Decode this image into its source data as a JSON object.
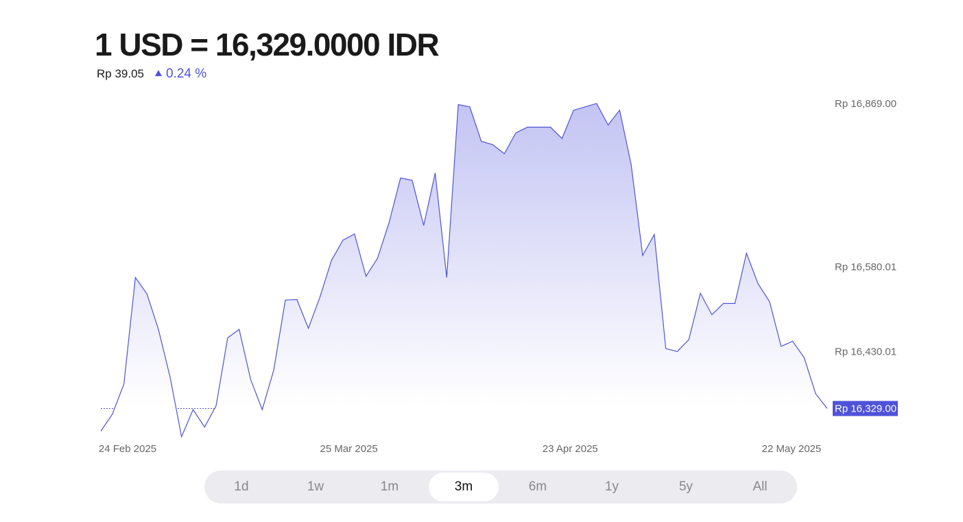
{
  "chart_data": {
    "type": "area",
    "title": "1 USD = 16,329.0000 IDR",
    "change": "Rp 39.05",
    "change_percent": "0.24 %",
    "x_labels": [
      "24 Feb 2025",
      "25 Mar 2025",
      "23 Apr 2025",
      "22 May 2025"
    ],
    "values": [
      16289,
      16319,
      16372,
      16561,
      16532,
      16469,
      16385,
      16279,
      16327,
      16296,
      16334,
      16454,
      16469,
      16380,
      16327,
      16397,
      16521,
      16522,
      16471,
      16526,
      16591,
      16627,
      16638,
      16563,
      16595,
      16658,
      16737,
      16733,
      16653,
      16746,
      16561,
      16867,
      16863,
      16802,
      16796,
      16780,
      16817,
      16827,
      16827,
      16827,
      16807,
      16857,
      16863,
      16869,
      16831,
      16857,
      16761,
      16600,
      16637,
      16435,
      16430,
      16451,
      16533,
      16495,
      16515,
      16515,
      16604,
      16550,
      16518,
      16439,
      16448,
      16419,
      16355,
      16329
    ],
    "color": "#4f52d8",
    "ylim": [
      16275,
      16870
    ],
    "yticks": [
      {
        "value": 16869,
        "label": "Rp 16,869.00"
      },
      {
        "value": 16580.01,
        "label": "Rp 16,580.01"
      },
      {
        "value": 16430.01,
        "label": "Rp 16,430.01"
      },
      {
        "value": 16329,
        "label": "Rp 16,329.00"
      }
    ],
    "ranges": [
      "1d",
      "1w",
      "1m",
      "3m",
      "6m",
      "1y",
      "5y",
      "All"
    ],
    "selected_range": 3
  }
}
